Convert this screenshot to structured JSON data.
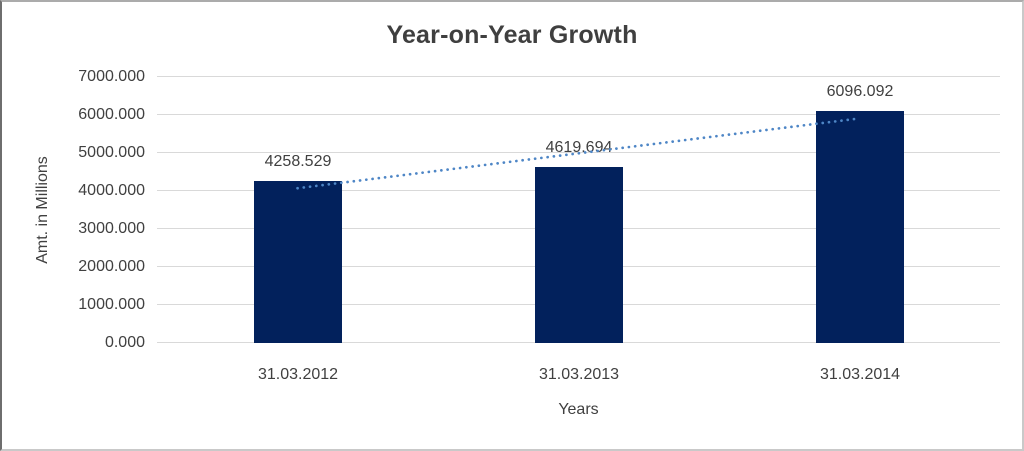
{
  "chart_data": {
    "type": "bar",
    "title": "Year-on-Year Growth",
    "xlabel": "Years",
    "ylabel": "Amt. in Millions",
    "categories": [
      "31.03.2012",
      "31.03.2013",
      "31.03.2014"
    ],
    "values": [
      4258.529,
      4619.694,
      6096.092
    ],
    "value_labels": [
      "4258.529",
      "4619.694",
      "6096.092"
    ],
    "y_tick_labels": [
      "7000.000",
      "6000.000",
      "5000.000",
      "4000.000",
      "3000.000",
      "2000.000",
      "1000.000",
      "0.000"
    ],
    "ylim": [
      0,
      7000
    ],
    "y_tick_step": 1000,
    "grid": true,
    "legend_position": "none",
    "trendline": {
      "type": "linear",
      "style": "dotted"
    },
    "colors": {
      "bar": "#02215C",
      "gridline": "#D9D9D9",
      "text": "#404040",
      "title_text": "#3F3F3F",
      "trendline": "#4E86C6",
      "background": "#FFFFFF",
      "frame_border": "#C9C9C9"
    }
  }
}
